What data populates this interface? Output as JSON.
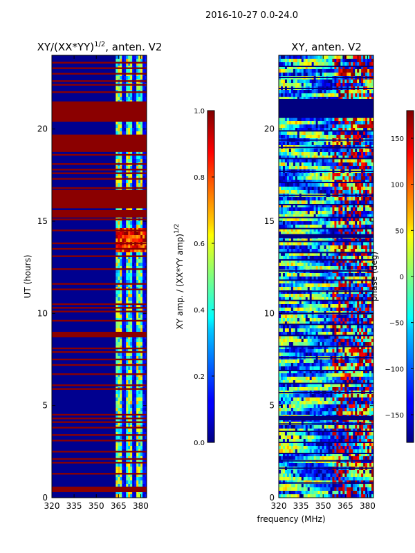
{
  "figure_title": "2016-10-27 0.0-24.0",
  "chart_data": [
    {
      "type": "heatmap",
      "title_main": "XY/(XX*YY)",
      "title_exp": "1/2",
      "title_suffix": ", anten. V2",
      "xlabel": "",
      "ylabel": "UT (hours)",
      "xlim": [
        320,
        384
      ],
      "ylim": [
        0,
        24
      ],
      "x_ticks": [
        320,
        335,
        350,
        365,
        380
      ],
      "y_ticks": [
        0,
        5,
        10,
        15,
        20
      ],
      "colorbar": {
        "label_main": "XY amp. / (XX*YY amp)",
        "label_exp": "1/2",
        "range": [
          0.0,
          1.0
        ],
        "ticks": [
          0.0,
          0.2,
          0.4,
          0.6,
          0.8,
          1.0
        ],
        "tick_labels": [
          "0.0",
          "0.2",
          "0.4",
          "0.6",
          "0.8",
          "1.0"
        ],
        "colormap": "jet"
      },
      "flagged_hours": [
        0.5,
        1.3,
        1.9,
        2.1,
        2.5,
        3.1,
        3.4,
        3.8,
        4.1,
        4.3,
        4.5,
        5.9,
        6.1,
        6.7,
        7.2,
        7.5,
        7.9,
        8.1,
        8.9,
        9.6,
        10.1,
        10.3,
        10.5,
        11.3,
        11.6,
        12.4,
        13.1,
        13.5,
        13.8,
        14.5,
        15.1,
        15.4,
        16.2,
        16.5,
        16.8,
        17.3,
        17.6,
        17.8,
        18.1,
        18.6,
        18.8,
        19.1,
        19.3,
        19.6,
        21.2,
        21.4,
        22.0,
        22.4,
        22.6,
        23.0,
        23.3,
        23.6
      ],
      "flagged_blocks": [
        [
          20.4,
          21.5
        ],
        [
          18.8,
          19.7
        ],
        [
          15.7,
          16.7
        ],
        [
          15.2,
          15.6
        ],
        [
          8.7,
          9.0
        ],
        [
          0.3,
          0.6
        ]
      ],
      "bright_band_mhz": [
        362,
        384
      ]
    },
    {
      "type": "heatmap",
      "title_main": "XY, anten. V2",
      "xlabel": "frequency (MHz)",
      "ylabel": "",
      "xlim": [
        320,
        384
      ],
      "ylim": [
        0,
        24
      ],
      "x_ticks": [
        320,
        335,
        350,
        365,
        380
      ],
      "y_ticks": [
        0,
        5,
        10,
        15,
        20
      ],
      "colorbar": {
        "label": "phase (deg)",
        "range": [
          -180,
          180
        ],
        "ticks": [
          -150,
          -100,
          -50,
          0,
          50,
          100,
          150
        ],
        "tick_labels": [
          "−150",
          "−100",
          "−50",
          "0",
          "50",
          "100",
          "150"
        ],
        "colormap": "jet"
      },
      "flagged_hours": [
        0.8,
        1.6,
        2.0,
        2.4,
        3.0,
        3.6,
        4.0,
        4.4,
        5.7,
        6.2,
        6.9,
        7.6,
        8.2,
        8.8,
        9.4,
        10.0,
        10.7,
        11.2,
        11.8,
        12.3,
        12.9,
        13.3,
        13.9,
        14.6,
        15.2,
        15.9,
        16.4,
        17.1,
        17.7,
        18.4,
        19.0,
        19.4,
        19.9,
        21.6,
        22.2,
        22.8,
        23.4
      ],
      "flagged_blocks": [
        [
          20.6,
          21.6
        ],
        [
          14.1,
          14.3
        ],
        [
          4.2,
          4.4
        ]
      ]
    }
  ]
}
